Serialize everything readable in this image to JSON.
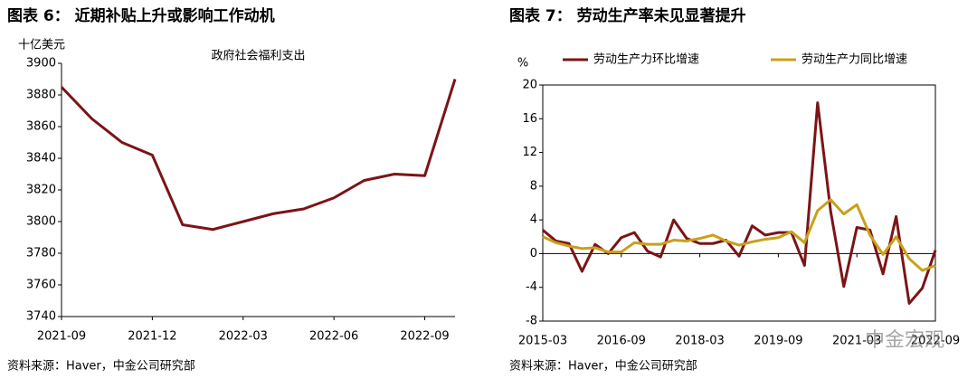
{
  "chart_data": [
    {
      "type": "line",
      "title": "图表 6：  近期补贴上升或影响工作动机",
      "y_label": "十亿美元",
      "categories": [
        "2021-09",
        null,
        null,
        "2021-12",
        null,
        null,
        "2022-03",
        null,
        null,
        "2022-06",
        null,
        null,
        "2022-09",
        null
      ],
      "series": [
        {
          "name": "政府社会福利支出",
          "color": "#7b1416",
          "values": [
            3885,
            3865,
            3850,
            3842,
            3798,
            3795,
            3800,
            3805,
            3808,
            3815,
            3826,
            3830,
            3829,
            3890
          ]
        }
      ],
      "ylim": [
        3740,
        3900
      ],
      "yticks": [
        3740,
        3760,
        3780,
        3800,
        3820,
        3840,
        3860,
        3880,
        3900
      ],
      "legend": "inside-top",
      "source": "资料来源：Haver，中金公司研究部"
    },
    {
      "type": "line",
      "title": "图表 7：  劳动生产率未见显著提升",
      "y_label": "%",
      "categories": [
        "2015-03",
        null,
        null,
        null,
        null,
        null,
        "2016-09",
        null,
        null,
        null,
        null,
        null,
        "2018-03",
        null,
        null,
        null,
        null,
        null,
        "2019-09",
        null,
        null,
        null,
        null,
        null,
        "2021-03",
        null,
        null,
        null,
        null,
        null,
        "2022-09"
      ],
      "series": [
        {
          "name": "劳动生产力环比增速",
          "color": "#7b1416",
          "values": [
            2.8,
            1.5,
            1.2,
            -2.1,
            1.1,
            0.0,
            1.9,
            2.5,
            0.3,
            -0.4,
            4.0,
            1.8,
            1.2,
            1.2,
            1.6,
            -0.3,
            3.3,
            2.2,
            2.5,
            2.5,
            -1.4,
            17.9,
            5.0,
            -3.9,
            3.1,
            2.8,
            -2.4,
            4.4,
            -5.9,
            -4.1,
            0.4
          ]
        },
        {
          "name": "劳动生产力同比增速",
          "color": "#c9a01a",
          "values": [
            2.0,
            1.3,
            0.9,
            0.6,
            0.7,
            0.2,
            0.2,
            1.3,
            1.1,
            1.1,
            1.6,
            1.5,
            1.8,
            2.2,
            1.5,
            1.0,
            1.4,
            1.7,
            1.9,
            2.6,
            1.3,
            5.1,
            6.4,
            4.7,
            5.8,
            2.2,
            -0.1,
            2.0,
            -0.6,
            -2.0,
            -1.4
          ]
        }
      ],
      "ylim": [
        -8,
        20
      ],
      "yticks": [
        -8,
        -4,
        0,
        4,
        8,
        12,
        16,
        20
      ],
      "legend": "top",
      "source": "资料来源：Haver，中金公司研究部",
      "watermark": "中金宏观"
    }
  ]
}
